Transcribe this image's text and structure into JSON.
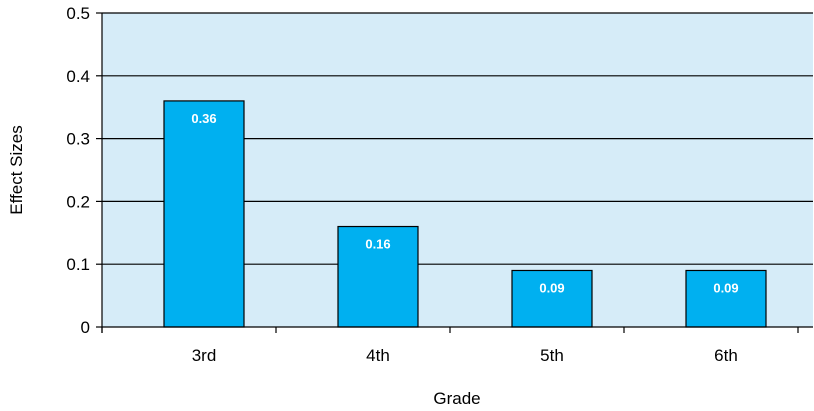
{
  "chart_data": {
    "type": "bar",
    "title": "",
    "xlabel": "Grade",
    "ylabel": "Effect Sizes",
    "categories": [
      "3rd",
      "4th",
      "5th",
      "6th"
    ],
    "values": [
      0.36,
      0.16,
      0.09,
      0.09
    ],
    "data_labels": [
      "0.36",
      "0.16",
      "0.09",
      "0.09"
    ],
    "ylim": [
      0,
      0.5
    ],
    "y_ticks": [
      0,
      0.1,
      0.2,
      0.3,
      0.4,
      0.5
    ],
    "y_tick_labels": [
      "0",
      "0.1",
      "0.2",
      "0.3",
      "0.4",
      "0.5"
    ],
    "grid": true,
    "legend": "none",
    "colors": {
      "plot_background": "#d6ecf8",
      "bar_fill": "#00b0f0",
      "bar_stroke": "#000000",
      "grid_line": "#000000",
      "label_text": "#ffffff"
    }
  }
}
